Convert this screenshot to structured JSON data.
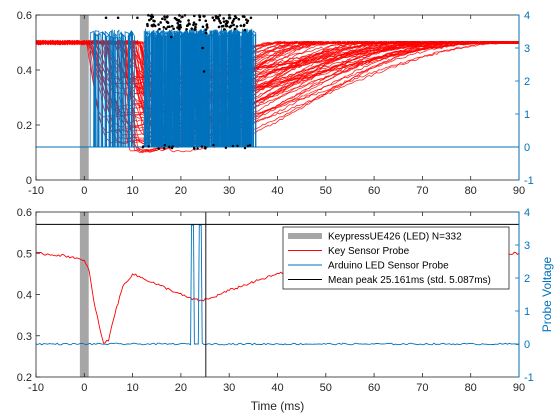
{
  "colors": {
    "key_sensor": "#ff0000",
    "arduino": "#0072bd",
    "keypress_bar": "#a6a6a6",
    "mean_peak": "#000000",
    "axis": "#262626",
    "peak_marker": "#000000"
  },
  "chart_data": [
    {
      "type": "line",
      "panel": "top",
      "xlim": [
        -10,
        90
      ],
      "ylim_left": [
        0,
        0.6
      ],
      "ylim_right": [
        -1,
        4
      ],
      "x_ticks": [
        -10,
        0,
        10,
        20,
        30,
        40,
        50,
        60,
        70,
        80,
        90
      ],
      "y_ticks_left": [
        "0",
        "0.2",
        "0.4",
        "0.6"
      ],
      "y_ticks_right": [
        "-1",
        "0",
        "1",
        "2",
        "3",
        "4"
      ],
      "keypress_interval": [
        -0.5,
        0.5
      ],
      "arduino_pulse_window": [
        12,
        35
      ],
      "arduino_baseline": 0,
      "arduino_high": 3.3,
      "key_sensor_baseline": 0.5,
      "key_sensor_min": 0.1,
      "key_sensor_min_at": 8,
      "key_sensor_recovery_range": [
        40,
        90
      ],
      "peak_marker_band": [
        0.545,
        0.6
      ]
    },
    {
      "type": "line",
      "panel": "bottom",
      "xlim": [
        -10,
        90
      ],
      "ylim_left": [
        0.2,
        0.6
      ],
      "ylim_right": [
        -1,
        4
      ],
      "x_ticks": [
        -10,
        0,
        10,
        20,
        30,
        40,
        50,
        60,
        70,
        80,
        90
      ],
      "y_ticks_left": [
        "0.2",
        "0.3",
        "0.4",
        "0.5",
        "0.6"
      ],
      "y_ticks_right": [
        "-1",
        "0",
        "1",
        "2",
        "3",
        "4"
      ],
      "xlabel": "Time (ms)",
      "ylabel_right": "Probe Voltage",
      "keypress_interval": [
        -0.5,
        0.5
      ],
      "mean_peak_x": 25.161,
      "mean_peak_hline_y": 0.57,
      "key_sensor_probe": {
        "x": [
          -10,
          -5,
          -2,
          0,
          1,
          2,
          3,
          4,
          5,
          6,
          8,
          10,
          12,
          14,
          16,
          18,
          20,
          22,
          24,
          26,
          28,
          30,
          35,
          40,
          45,
          50,
          55,
          60,
          65,
          70,
          75,
          80,
          85,
          90
        ],
        "y": [
          0.5,
          0.495,
          0.49,
          0.48,
          0.46,
          0.38,
          0.33,
          0.28,
          0.29,
          0.34,
          0.42,
          0.45,
          0.44,
          0.43,
          0.42,
          0.41,
          0.4,
          0.39,
          0.385,
          0.39,
          0.4,
          0.41,
          0.43,
          0.45,
          0.46,
          0.47,
          0.48,
          0.49,
          0.5,
          0.5,
          0.5,
          0.5,
          0.5,
          0.5
        ]
      },
      "arduino_led_probe": {
        "x": [
          -10,
          22,
          22.2,
          22.6,
          22.8,
          23.6,
          23.8,
          24.2,
          24.4,
          90
        ],
        "y": [
          0,
          0,
          3.6,
          3.6,
          0,
          0,
          3.6,
          3.6,
          0,
          0
        ]
      },
      "legend": {
        "placement": "top-right",
        "entries": [
          {
            "label": "KeypressUE426 (LED)  N=332",
            "kind": "bar",
            "color_key": "keypress_bar"
          },
          {
            "label": "Key Sensor Probe",
            "kind": "line",
            "color_key": "key_sensor"
          },
          {
            "label": "Arduino LED Sensor Probe",
            "kind": "line",
            "color_key": "arduino"
          },
          {
            "label": "Mean peak 25.161ms (std. 5.087ms)",
            "kind": "line",
            "color_key": "mean_peak"
          }
        ]
      }
    }
  ]
}
